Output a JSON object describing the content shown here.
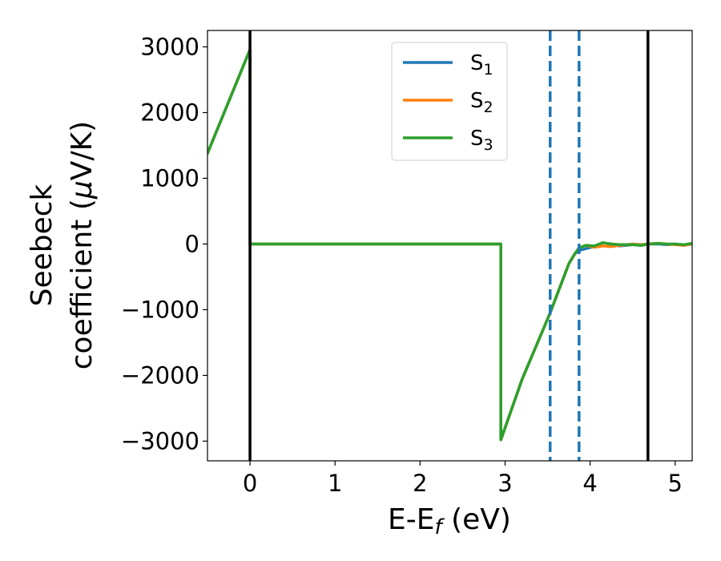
{
  "chart_data": {
    "type": "line",
    "xlabel_main": "E-E",
    "xlabel_sub": "f",
    "xlabel_unit": " (eV)",
    "ylabel_line1": "Seebeck",
    "ylabel_line2_pre": "coefficient  (",
    "ylabel_mu": "μ",
    "ylabel_line2_post": "V/K)",
    "xlim": [
      -0.5,
      5.2
    ],
    "ylim": [
      -3300,
      3250
    ],
    "x_ticks": [
      0,
      1,
      2,
      3,
      4,
      5
    ],
    "x_tick_labels": [
      "0",
      "1",
      "2",
      "3",
      "4",
      "5"
    ],
    "y_ticks": [
      3000,
      2000,
      1000,
      0,
      -1000,
      -2000,
      -3000
    ],
    "y_tick_labels": [
      "3000",
      "2000",
      "1000",
      "0",
      "−1000",
      "−2000",
      "−3000"
    ],
    "grid": false,
    "legend_position": "top-center",
    "vertical_lines_solid": [
      0.0,
      4.68
    ],
    "vertical_lines_dashed": [
      3.53,
      3.87
    ],
    "series": [
      {
        "name": "S",
        "name_sub": "1",
        "color": "#1f77b4",
        "x": [
          -0.5,
          0.0,
          0.0,
          2.95,
          2.95,
          3.2,
          3.53,
          3.75,
          3.82,
          3.87,
          3.95,
          4.05,
          4.15,
          4.25,
          4.35,
          4.5,
          4.6,
          4.68,
          4.8,
          4.9,
          5.0,
          5.1,
          5.2
        ],
        "y": [
          1380,
          2960,
          0,
          0,
          -2980,
          -2060,
          -1050,
          -300,
          -150,
          -100,
          -70,
          -40,
          20,
          0,
          -30,
          -10,
          -20,
          0,
          0,
          -10,
          0,
          -20,
          0
        ]
      },
      {
        "name": "S",
        "name_sub": "2",
        "color": "#ff7f0e",
        "x": [
          -0.5,
          0.0,
          0.0,
          2.95,
          2.95,
          3.2,
          3.53,
          3.75,
          3.82,
          3.87,
          3.95,
          4.05,
          4.15,
          4.25,
          4.35,
          4.5,
          4.6,
          4.68,
          4.8,
          4.9,
          5.0,
          5.1,
          5.2
        ],
        "y": [
          1380,
          2960,
          0,
          0,
          -2980,
          -2060,
          -1050,
          -300,
          -150,
          -60,
          -20,
          -50,
          -30,
          -40,
          -20,
          0,
          -10,
          0,
          10,
          0,
          -10,
          -20,
          0
        ]
      },
      {
        "name": "S",
        "name_sub": "3",
        "color": "#2ca02c",
        "x": [
          -0.5,
          0.0,
          0.0,
          2.95,
          2.95,
          3.2,
          3.53,
          3.75,
          3.82,
          3.87,
          3.95,
          4.05,
          4.15,
          4.25,
          4.35,
          4.5,
          4.6,
          4.68,
          4.8,
          4.9,
          5.0,
          5.1,
          5.2
        ],
        "y": [
          1380,
          2960,
          0,
          0,
          -2980,
          -2060,
          -1050,
          -300,
          -150,
          -60,
          -20,
          -30,
          20,
          0,
          -10,
          -10,
          -20,
          0,
          10,
          0,
          0,
          -10,
          10
        ]
      }
    ]
  }
}
